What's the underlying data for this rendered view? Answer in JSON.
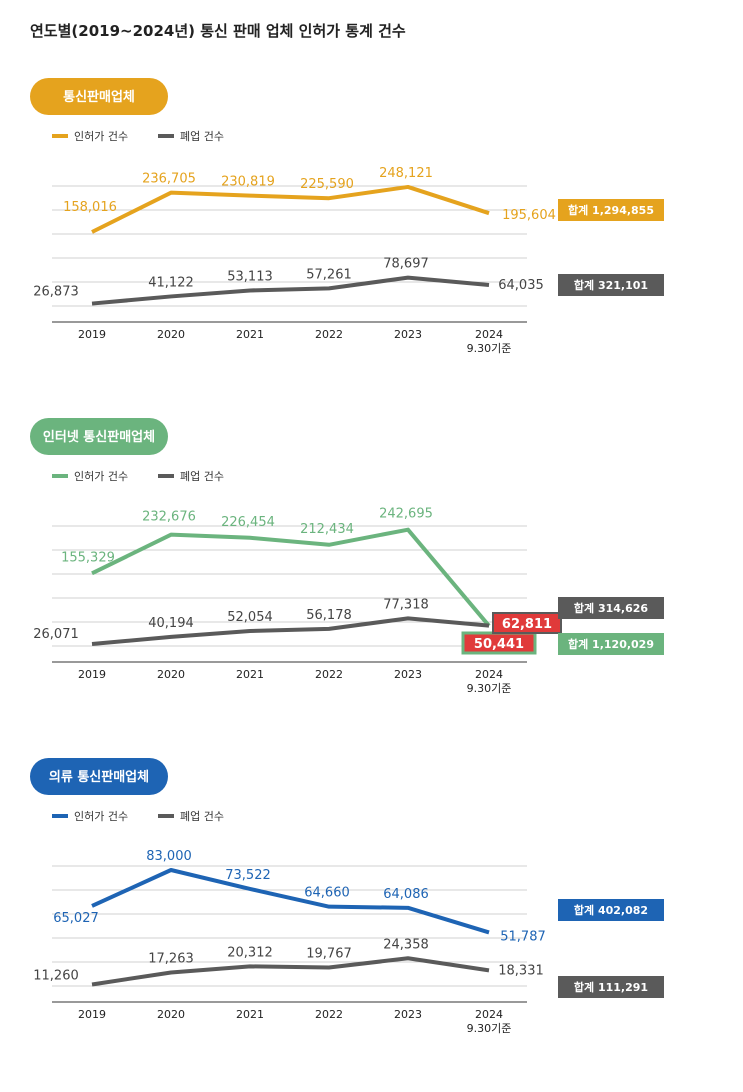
{
  "page": {
    "title": "연도별(2019~2024년) 통신 판매 업체 인허가 통계 건수"
  },
  "colors": {
    "orange": "#e5a31e",
    "green": "#6bb47e",
    "blue": "#1e64b4",
    "gray": "#5a5a5a",
    "red": "#e03a3a",
    "grid": "#d0d0d0"
  },
  "chart_data": [
    {
      "type": "line",
      "pill": "통신판매업체",
      "color": "orange",
      "categories": [
        "2019",
        "2020",
        "2021",
        "2022",
        "2023",
        "2024"
      ],
      "last_category_note": "9.30기준",
      "series": [
        {
          "name": "인허가 건수",
          "values": [
            158016,
            236705,
            230819,
            225590,
            248121,
            195604
          ],
          "labels": [
            "158,016",
            "236,705",
            "230,819",
            "225,590",
            "248,121",
            "195,604"
          ],
          "total": "합계 1,294,855"
        },
        {
          "name": "폐업 건수",
          "values": [
            26873,
            41122,
            53113,
            57261,
            78697,
            64035
          ],
          "labels": [
            "26,873",
            "41,122",
            "53,113",
            "57,261",
            "78,697",
            "64,035"
          ],
          "total": "합계 321,101"
        }
      ],
      "grid": true,
      "legend_position": "top-left"
    },
    {
      "type": "line",
      "pill": "인터넷 통신판매업체",
      "color": "green",
      "categories": [
        "2019",
        "2020",
        "2021",
        "2022",
        "2023",
        "2024"
      ],
      "last_category_note": "9.30기준",
      "series": [
        {
          "name": "인허가 건수",
          "values": [
            155329,
            232676,
            226454,
            212434,
            242695,
            50441
          ],
          "labels": [
            "155,329",
            "232,676",
            "226,454",
            "212,434",
            "242,695",
            "50,441"
          ],
          "total": "합계 1,120,029"
        },
        {
          "name": "폐업 건수",
          "values": [
            26071,
            40194,
            52054,
            56178,
            77318,
            62811
          ],
          "labels": [
            "26,071",
            "40,194",
            "52,054",
            "56,178",
            "77,318",
            "62,811"
          ],
          "total": "합계 314,626"
        }
      ],
      "highlight_last": true,
      "grid": true,
      "legend_position": "top-left"
    },
    {
      "type": "line",
      "pill": "의류 통신판매업체",
      "color": "blue",
      "categories": [
        "2019",
        "2020",
        "2021",
        "2022",
        "2023",
        "2024"
      ],
      "last_category_note": "9.30기준",
      "series": [
        {
          "name": "인허가 건수",
          "values": [
            65027,
            83000,
            73522,
            64660,
            64086,
            51787
          ],
          "labels": [
            "65,027",
            "83,000",
            "73,522",
            "64,660",
            "64,086",
            "51,787"
          ],
          "total": "합계 402,082"
        },
        {
          "name": "폐업 건수",
          "values": [
            11260,
            17263,
            20312,
            19767,
            24358,
            18331
          ],
          "labels": [
            "11,260",
            "17,263",
            "20,312",
            "19,767",
            "24,358",
            "18,331"
          ],
          "total": "합계 111,291"
        }
      ],
      "grid": true,
      "legend_position": "top-left"
    }
  ]
}
